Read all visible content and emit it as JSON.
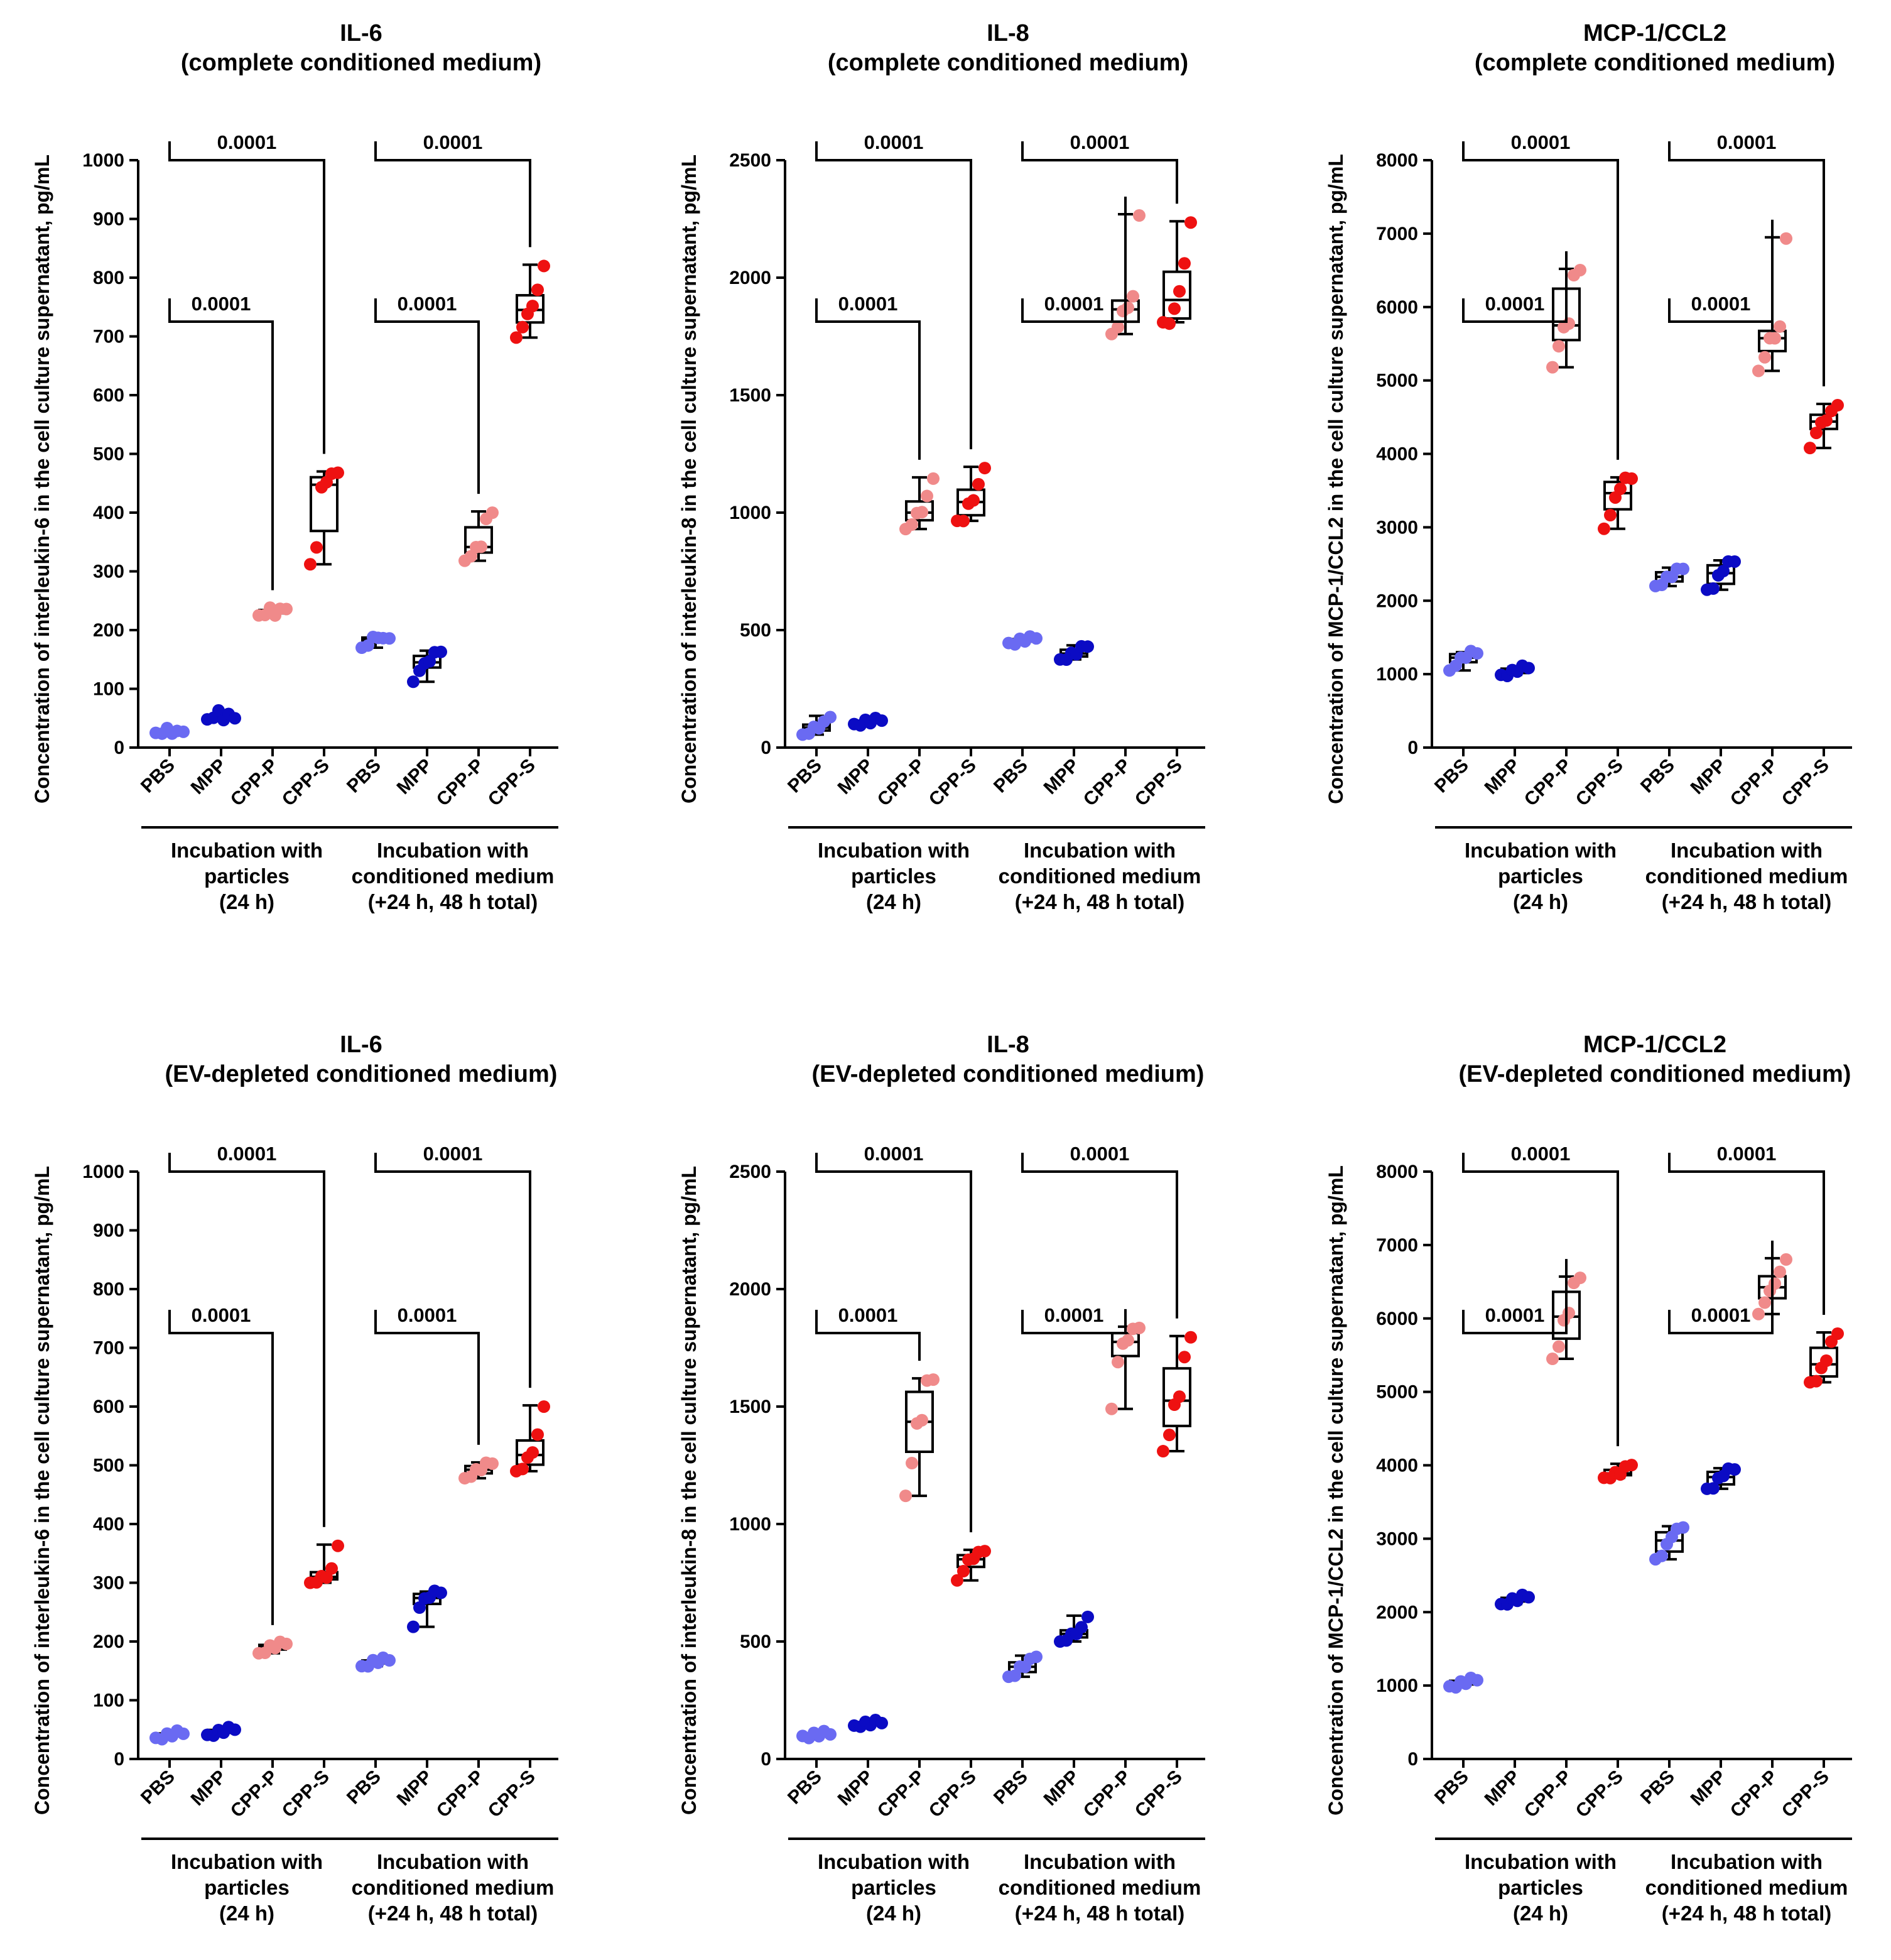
{
  "colors": {
    "PBS": "#6a6af2",
    "MPP": "#0b0bc4",
    "CPP-P": "#f08a8a",
    "CPP-S": "#ee1111",
    "line": "#000000"
  },
  "groups": [
    {
      "label": [
        "Incubation with",
        "particles",
        "(24 h)"
      ]
    },
    {
      "label": [
        "Incubation with",
        "conditioned medium",
        "(+24 h, 48 h total)"
      ]
    }
  ],
  "chart_data": [
    {
      "type": "box",
      "title": [
        "IL-6",
        "(complete conditioned medium)"
      ],
      "ylabel": "Concentration of interleukin-6 in the cell culture supernatant, pg/mL",
      "ylim": [
        0,
        1000
      ],
      "yticks": [
        0,
        100,
        200,
        300,
        400,
        500,
        600,
        700,
        800,
        900,
        1000
      ],
      "categories": [
        "PBS",
        "MPP",
        "CPP-P",
        "CPP-S",
        "PBS",
        "MPP",
        "CPP-P",
        "CPP-S"
      ],
      "series": [
        {
          "name": "PBS",
          "values": [
            25,
            28,
            30,
            27,
            24,
            29
          ]
        },
        {
          "name": "MPP",
          "values": [
            48,
            55,
            60,
            50,
            53,
            52
          ]
        },
        {
          "name": "CPP-P",
          "values": [
            225,
            230,
            235,
            228,
            232,
            238
          ]
        },
        {
          "name": "CPP-S",
          "values": [
            312,
            345,
            440,
            455,
            462,
            470
          ]
        },
        {
          "name": "PBS",
          "values": [
            170,
            178,
            185,
            190,
            182,
            188
          ]
        },
        {
          "name": "MPP",
          "values": [
            112,
            135,
            140,
            150,
            158,
            165
          ]
        },
        {
          "name": "CPP-P",
          "values": [
            318,
            330,
            338,
            345,
            385,
            402
          ]
        },
        {
          "name": "CPP-S",
          "values": [
            698,
            720,
            735,
            755,
            775,
            822
          ]
        }
      ],
      "comparisons": [
        {
          "from": 0,
          "to": 2,
          "label": "0.0001"
        },
        {
          "from": 0,
          "to": 3,
          "label": "0.0001"
        },
        {
          "from": 4,
          "to": 6,
          "label": "0.0001"
        },
        {
          "from": 4,
          "to": 7,
          "label": "0.0001"
        }
      ]
    },
    {
      "type": "box",
      "title": [
        "IL-8",
        "(complete conditioned medium)"
      ],
      "ylabel": "Concentration of interleukin-8 in the cell culture supernatant, pg/mL",
      "ylim": [
        0,
        2500
      ],
      "yticks": [
        0,
        500,
        1000,
        1500,
        2000,
        2500
      ],
      "categories": [
        "PBS",
        "MPP",
        "CPP-P",
        "CPP-S",
        "PBS",
        "MPP",
        "CPP-P",
        "CPP-S"
      ],
      "series": [
        {
          "name": "PBS",
          "values": [
            55,
            70,
            80,
            90,
            100,
            135
          ]
        },
        {
          "name": "MPP",
          "values": [
            100,
            105,
            110,
            112,
            115,
            120
          ]
        },
        {
          "name": "CPP-P",
          "values": [
            930,
            960,
            990,
            1010,
            1060,
            1150
          ]
        },
        {
          "name": "CPP-S",
          "values": [
            965,
            975,
            1030,
            1060,
            1110,
            1195
          ]
        },
        {
          "name": "PBS",
          "values": [
            445,
            450,
            455,
            460,
            462,
            470
          ]
        },
        {
          "name": "MPP",
          "values": [
            375,
            385,
            395,
            405,
            420,
            435
          ]
        },
        {
          "name": "CPP-P",
          "values": [
            1760,
            1800,
            1850,
            1880,
            1910,
            2270
          ]
        },
        {
          "name": "CPP-S",
          "values": [
            1810,
            1815,
            1860,
            1950,
            2050,
            2240
          ]
        }
      ],
      "comparisons": [
        {
          "from": 0,
          "to": 2,
          "label": "0.0001"
        },
        {
          "from": 0,
          "to": 3,
          "label": "0.0001"
        },
        {
          "from": 4,
          "to": 6,
          "label": "0.0001"
        },
        {
          "from": 4,
          "to": 7,
          "label": "0.0001"
        }
      ]
    },
    {
      "type": "box",
      "title": [
        "MCP-1/CCL2",
        "(complete conditioned medium)"
      ],
      "ylabel": "Concentration of MCP-1/CCL2 in the cell culture supernatant, pg/mL",
      "ylim": [
        0,
        8000
      ],
      "yticks": [
        0,
        1000,
        2000,
        3000,
        4000,
        5000,
        6000,
        7000,
        8000
      ],
      "categories": [
        "PBS",
        "MPP",
        "CPP-P",
        "CPP-S",
        "PBS",
        "MPP",
        "CPP-P",
        "CPP-S"
      ],
      "series": [
        {
          "name": "PBS",
          "values": [
            1050,
            1150,
            1200,
            1250,
            1280,
            1300
          ]
        },
        {
          "name": "MPP",
          "values": [
            990,
            1010,
            1030,
            1060,
            1080,
            1100
          ]
        },
        {
          "name": "CPP-P",
          "values": [
            5180,
            5500,
            5700,
            5800,
            6400,
            6520
          ]
        },
        {
          "name": "CPP-S",
          "values": [
            2980,
            3200,
            3380,
            3550,
            3640,
            3680
          ]
        },
        {
          "name": "PBS",
          "values": [
            2200,
            2250,
            2300,
            2350,
            2400,
            2450
          ]
        },
        {
          "name": "MPP",
          "values": [
            2150,
            2200,
            2320,
            2430,
            2500,
            2550
          ]
        },
        {
          "name": "CPP-P",
          "values": [
            5130,
            5350,
            5550,
            5600,
            5700,
            6950
          ]
        },
        {
          "name": "CPP-S",
          "values": [
            4080,
            4320,
            4400,
            4480,
            4550,
            4680
          ]
        }
      ],
      "comparisons": [
        {
          "from": 0,
          "to": 2,
          "label": "0.0001"
        },
        {
          "from": 0,
          "to": 3,
          "label": "0.0001"
        },
        {
          "from": 4,
          "to": 6,
          "label": "0.0001"
        },
        {
          "from": 4,
          "to": 7,
          "label": "0.0001"
        }
      ]
    },
    {
      "type": "box",
      "title": [
        "IL-6",
        "(EV-depleted conditioned medium)"
      ],
      "ylabel": "Concentration of interleukin-6 in the cell culture supernatant, pg/mL",
      "ylim": [
        0,
        1000
      ],
      "yticks": [
        0,
        100,
        200,
        300,
        400,
        500,
        600,
        700,
        800,
        900,
        1000
      ],
      "categories": [
        "PBS",
        "MPP",
        "CPP-P",
        "CPP-S",
        "PBS",
        "MPP",
        "CPP-P",
        "CPP-S"
      ],
      "series": [
        {
          "name": "PBS",
          "values": [
            36,
            38,
            40,
            42,
            44,
            45
          ]
        },
        {
          "name": "MPP",
          "values": [
            41,
            44,
            46,
            48,
            50,
            52
          ]
        },
        {
          "name": "CPP-P",
          "values": [
            180,
            185,
            190,
            192,
            195,
            198
          ]
        },
        {
          "name": "CPP-S",
          "values": [
            300,
            305,
            308,
            312,
            320,
            365
          ]
        },
        {
          "name": "PBS",
          "values": [
            158,
            162,
            165,
            167,
            168,
            170
          ]
        },
        {
          "name": "MPP",
          "values": [
            225,
            262,
            270,
            278,
            282,
            285
          ]
        },
        {
          "name": "CPP-P",
          "values": [
            478,
            485,
            490,
            495,
            500,
            505
          ]
        },
        {
          "name": "CPP-S",
          "values": [
            490,
            498,
            510,
            525,
            548,
            602
          ]
        }
      ],
      "comparisons": [
        {
          "from": 0,
          "to": 2,
          "label": "0.0001"
        },
        {
          "from": 0,
          "to": 3,
          "label": "0.0001"
        },
        {
          "from": 4,
          "to": 6,
          "label": "0.0001"
        },
        {
          "from": 4,
          "to": 7,
          "label": "0.0001"
        }
      ]
    },
    {
      "type": "box",
      "title": [
        "IL-8",
        "(EV-depleted conditioned medium)"
      ],
      "ylabel": "Concentration of interleukin-8 in the cell culture supernatant, pg/mL",
      "ylim": [
        0,
        2500
      ],
      "yticks": [
        0,
        500,
        1000,
        1500,
        2000,
        2500
      ],
      "categories": [
        "PBS",
        "MPP",
        "CPP-P",
        "CPP-S",
        "PBS",
        "MPP",
        "CPP-P",
        "CPP-S"
      ],
      "series": [
        {
          "name": "PBS",
          "values": [
            98,
            100,
            103,
            105,
            108,
            110
          ]
        },
        {
          "name": "MPP",
          "values": [
            142,
            148,
            150,
            152,
            155,
            158
          ]
        },
        {
          "name": "CPP-P",
          "values": [
            1120,
            1270,
            1420,
            1450,
            1600,
            1620
          ]
        },
        {
          "name": "CPP-S",
          "values": [
            760,
            810,
            840,
            860,
            870,
            890
          ]
        },
        {
          "name": "PBS",
          "values": [
            350,
            365,
            385,
            400,
            415,
            440
          ]
        },
        {
          "name": "MPP",
          "values": [
            500,
            515,
            525,
            540,
            550,
            610
          ]
        },
        {
          "name": "CPP-P",
          "values": [
            1490,
            1700,
            1760,
            1790,
            1820,
            1840
          ]
        },
        {
          "name": "CPP-S",
          "values": [
            1310,
            1390,
            1500,
            1550,
            1700,
            1800
          ]
        }
      ],
      "comparisons": [
        {
          "from": 0,
          "to": 2,
          "label": "0.0001"
        },
        {
          "from": 0,
          "to": 3,
          "label": "0.0001"
        },
        {
          "from": 4,
          "to": 6,
          "label": "0.0001"
        },
        {
          "from": 4,
          "to": 7,
          "label": "0.0001"
        }
      ]
    },
    {
      "type": "box",
      "title": [
        "MCP-1/CCL2",
        "(EV-depleted conditioned medium)"
      ],
      "ylabel": "Concentration of MCP-1/CCL2 in the cell culture supernatant, pg/mL",
      "ylim": [
        0,
        8000
      ],
      "yticks": [
        0,
        1000,
        2000,
        3000,
        4000,
        5000,
        6000,
        7000,
        8000
      ],
      "categories": [
        "PBS",
        "MPP",
        "CPP-P",
        "CPP-S",
        "PBS",
        "MPP",
        "CPP-P",
        "CPP-S"
      ],
      "series": [
        {
          "name": "PBS",
          "values": [
            990,
            1010,
            1030,
            1050,
            1070,
            1090
          ]
        },
        {
          "name": "MPP",
          "values": [
            2110,
            2140,
            2160,
            2180,
            2200,
            2220
          ]
        },
        {
          "name": "CPP-P",
          "values": [
            5450,
            5650,
            5950,
            6100,
            6450,
            6570
          ]
        },
        {
          "name": "CPP-S",
          "values": [
            3830,
            3860,
            3880,
            3900,
            3950,
            4020
          ]
        },
        {
          "name": "PBS",
          "values": [
            2720,
            2800,
            2900,
            3050,
            3100,
            3170
          ]
        },
        {
          "name": "MPP",
          "values": [
            3680,
            3720,
            3800,
            3880,
            3920,
            3960
          ]
        },
        {
          "name": "CPP-P",
          "values": [
            6060,
            6250,
            6350,
            6500,
            6600,
            6820
          ]
        },
        {
          "name": "CPP-S",
          "values": [
            5130,
            5180,
            5300,
            5450,
            5650,
            5810
          ]
        }
      ],
      "comparisons": [
        {
          "from": 0,
          "to": 2,
          "label": "0.0001"
        },
        {
          "from": 0,
          "to": 3,
          "label": "0.0001"
        },
        {
          "from": 4,
          "to": 6,
          "label": "0.0001"
        },
        {
          "from": 4,
          "to": 7,
          "label": "0.0001"
        }
      ]
    }
  ]
}
